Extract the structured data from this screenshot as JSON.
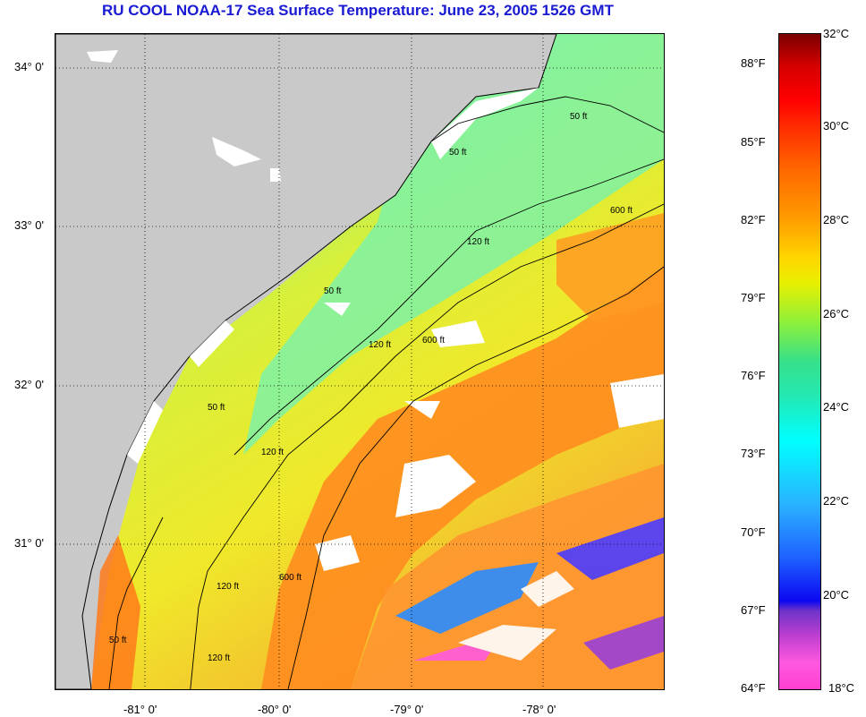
{
  "title": "RU COOL  NOAA-17  Sea Surface Temperature:  June 23, 2005 1526 GMT",
  "map": {
    "lat_labels": [
      "34° 0'",
      "33° 0'",
      "32° 0'",
      "31° 0'"
    ],
    "lon_labels": [
      "-81° 0'",
      "-80° 0'",
      "-79° 0'",
      "-78° 0'"
    ],
    "contour_labels": [
      "50 ft",
      "50 ft",
      "50 ft",
      "50 ft",
      "50 ft",
      "120 ft",
      "120 ft",
      "120 ft",
      "120 ft",
      "120 ft",
      "600 ft",
      "600 ft",
      "600 ft"
    ]
  },
  "colorbar": {
    "fahrenheit": [
      "88°F",
      "85°F",
      "82°F",
      "79°F",
      "76°F",
      "73°F",
      "70°F",
      "67°F",
      "64°F"
    ],
    "celsius": [
      "32°C",
      "30°C",
      "28°C",
      "26°C",
      "24°C",
      "22°C",
      "20°C",
      "18°C"
    ]
  },
  "colors": {
    "title": "#1a1ad2",
    "land": "#c9c9c9",
    "warm": "#ff8a1a",
    "mid": "#e6f02a",
    "cool": "#7ef08a"
  }
}
